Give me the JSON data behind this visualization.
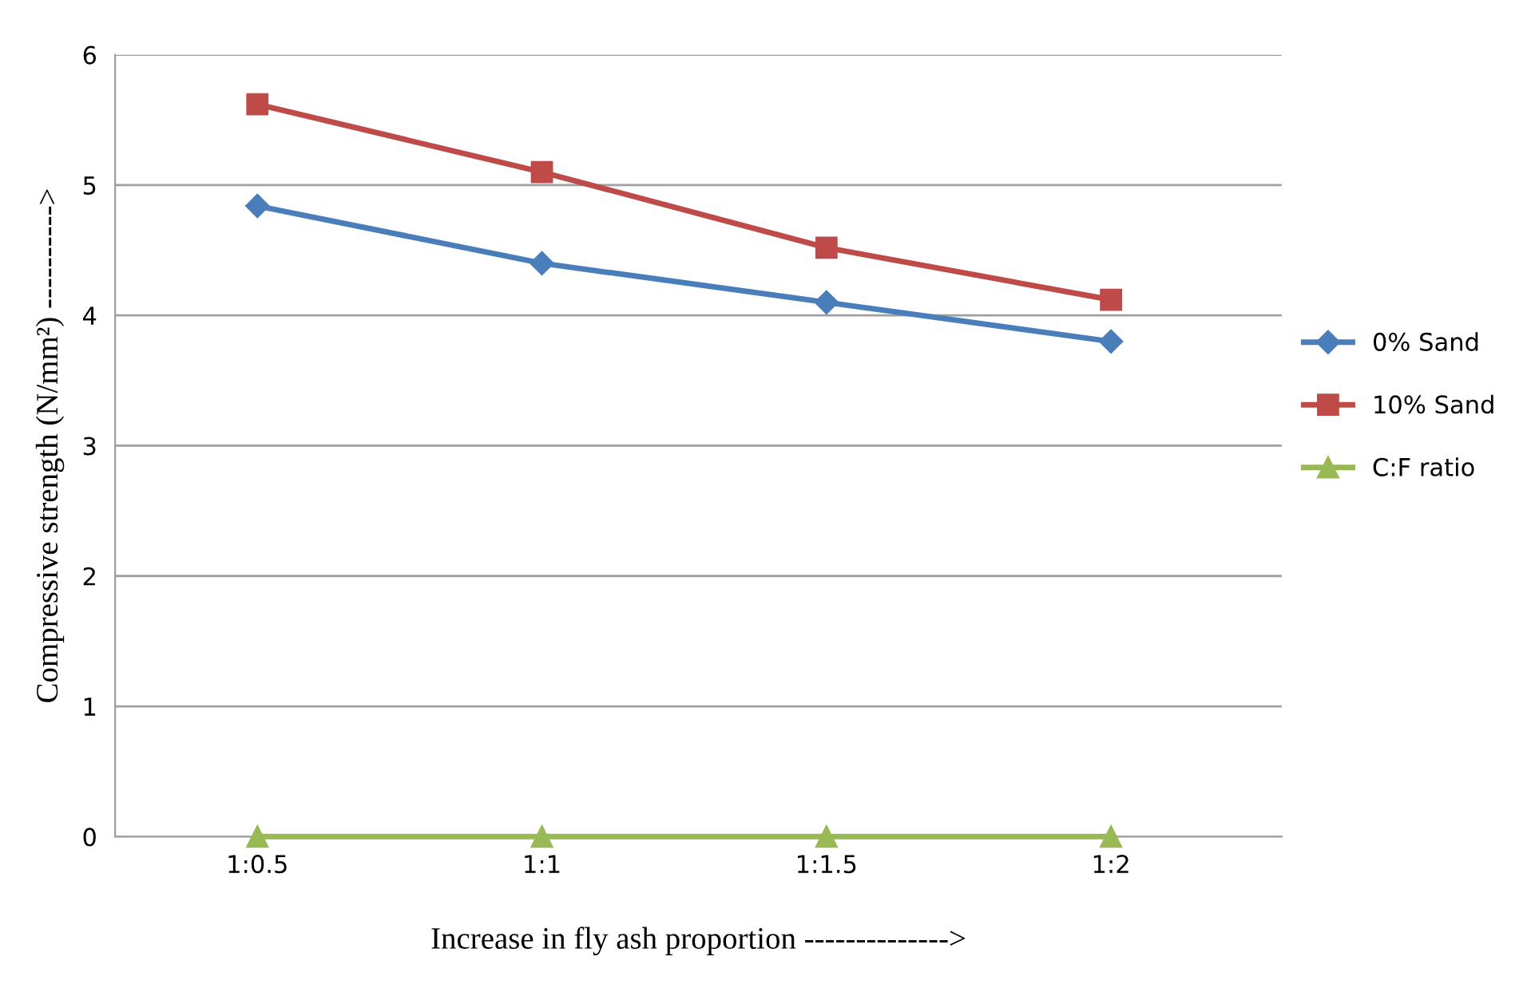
{
  "chart_data": {
    "type": "line",
    "xlabel": "Increase in fly ash proportion -------------->",
    "ylabel": "Compressive strength (N/mm²) ---------->",
    "categories": [
      "1:0.5",
      "1:1",
      "1:1.5",
      "1:2"
    ],
    "series": [
      {
        "name": "0% Sand",
        "color": "#4a7ebb",
        "marker": "diamond",
        "values": [
          4.84,
          4.4,
          4.1,
          3.8
        ]
      },
      {
        "name": "10% Sand",
        "color": "#be4b48",
        "marker": "square",
        "values": [
          5.62,
          5.1,
          4.52,
          4.12
        ]
      },
      {
        "name": "C:F ratio",
        "color": "#98b954",
        "marker": "triangle",
        "values": [
          0,
          0,
          0,
          0
        ]
      }
    ],
    "ylim": [
      0,
      6
    ],
    "yticks": [
      0,
      1,
      2,
      3,
      4,
      5,
      6
    ],
    "grid": "y",
    "legend": "right",
    "line_style": "solid"
  }
}
